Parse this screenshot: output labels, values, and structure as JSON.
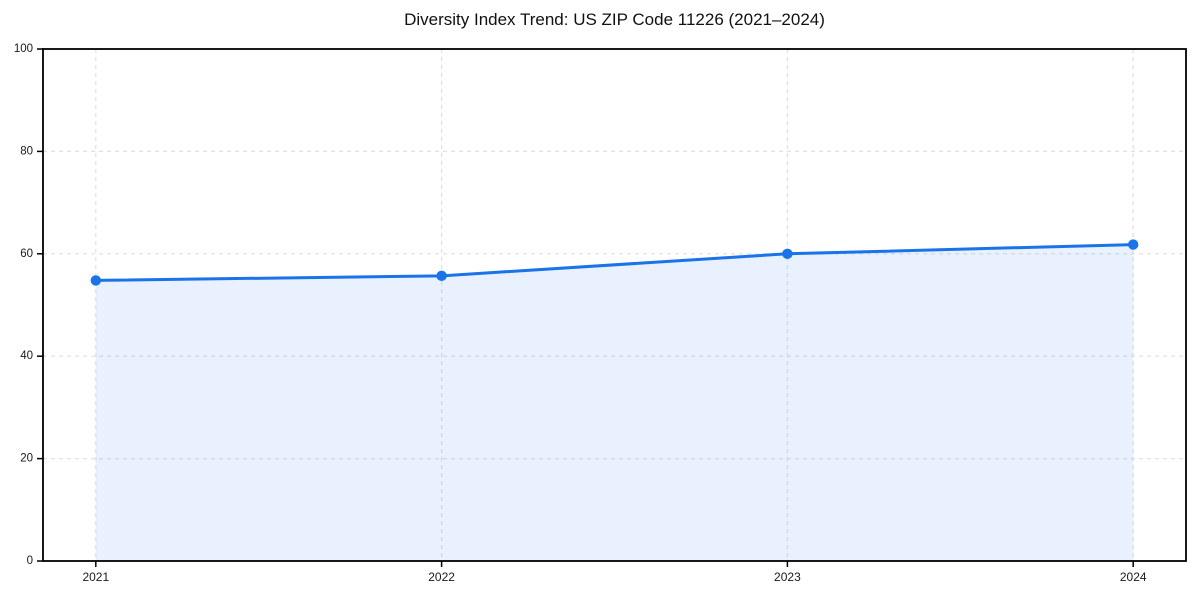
{
  "page": {
    "title": "Diversity Index Trend: US ZIP Code 11226 (2021–2024)"
  },
  "chart_data": {
    "type": "area",
    "title": "Diversity Index Trend: US ZIP Code 11226 (2021–2024)",
    "categories": [
      "2021",
      "2022",
      "2023",
      "2024"
    ],
    "values": [
      54.8,
      55.7,
      60.0,
      61.8
    ],
    "series_name": "Diversity Index",
    "xlabel": "",
    "ylabel": "",
    "ylim": [
      0,
      100
    ],
    "yticks": [
      0,
      20,
      40,
      60,
      80,
      100
    ],
    "grid": true,
    "grid_style": "dashed",
    "legend": false,
    "markers": true,
    "colors": {
      "line": "#1a73e8",
      "marker": "#1a73e8",
      "fill": "rgba(26,115,232,0.10)",
      "grid": "#e0e0e0",
      "axis": "#000000",
      "tick_text": "#1a1a1a",
      "title_text": "#111111",
      "background": "#ffffff"
    }
  }
}
